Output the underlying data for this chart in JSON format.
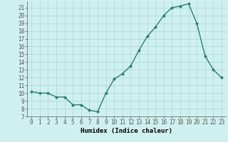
{
  "xlabel": "Humidex (Indice chaleur)",
  "x_values": [
    0,
    1,
    2,
    3,
    4,
    5,
    6,
    7,
    8,
    9,
    10,
    11,
    12,
    13,
    14,
    15,
    16,
    17,
    18,
    19,
    20,
    21,
    22,
    23
  ],
  "y_values": [
    10.2,
    10.0,
    10.0,
    9.5,
    9.5,
    8.5,
    8.5,
    7.8,
    7.6,
    10.0,
    11.8,
    12.5,
    13.5,
    15.5,
    17.3,
    18.5,
    20.0,
    21.0,
    21.2,
    21.5,
    19.0,
    14.8,
    13.0,
    12.0
  ],
  "line_color": "#2e7d6e",
  "marker": "D",
  "marker_size": 2,
  "background_color": "#cff0ee",
  "grid_color": "#a8d8d4",
  "axis_color": "#555555",
  "ylim": [
    7,
    21.8
  ],
  "xlim": [
    -0.5,
    23.5
  ],
  "yticks": [
    7,
    8,
    9,
    10,
    11,
    12,
    13,
    14,
    15,
    16,
    17,
    18,
    19,
    20,
    21
  ],
  "xticks": [
    0,
    1,
    2,
    3,
    4,
    5,
    6,
    7,
    8,
    9,
    10,
    11,
    12,
    13,
    14,
    15,
    16,
    17,
    18,
    19,
    20,
    21,
    22,
    23
  ],
  "tick_fontsize": 5.5,
  "xlabel_fontsize": 6.5,
  "linewidth": 1.0
}
